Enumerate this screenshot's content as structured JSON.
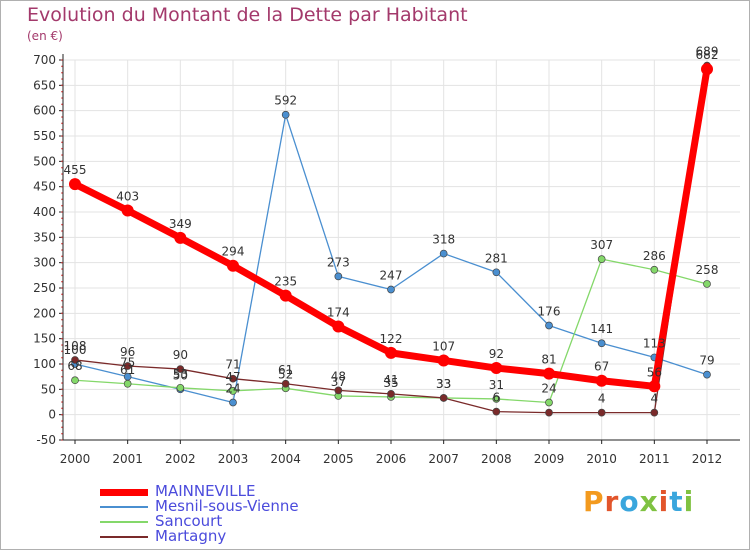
{
  "chart_data": {
    "type": "line",
    "title": "Evolution du Montant de la Dette par Habitant",
    "unit_label": "(en €)",
    "x": [
      "2000",
      "2001",
      "2002",
      "2003",
      "2004",
      "2005",
      "2006",
      "2007",
      "2008",
      "2009",
      "2010",
      "2011",
      "2012"
    ],
    "ylim": [
      -50,
      700
    ],
    "yticks": [
      -50,
      0,
      50,
      100,
      150,
      200,
      250,
      300,
      350,
      400,
      450,
      500,
      550,
      600,
      650,
      700
    ],
    "grid": true,
    "legend_position": "bottom-left",
    "series": [
      {
        "name": "MAINNEVILLE",
        "color": "#ff0000",
        "width": 7,
        "values": [
          455,
          403,
          349,
          294,
          235,
          174,
          122,
          107,
          92,
          81,
          67,
          56,
          682
        ],
        "labels": [
          "455",
          "403",
          "349",
          "294",
          "235",
          "174",
          "122",
          "107",
          "92",
          "81",
          "67",
          "56",
          "682"
        ]
      },
      {
        "name": "Mesnil-sous-Vienne",
        "color": "#4a8fd0",
        "width": 1.3,
        "values": [
          100,
          75,
          50,
          24,
          592,
          273,
          247,
          318,
          281,
          176,
          141,
          113,
          79
        ],
        "labels": [
          "100",
          "75",
          "50",
          "24",
          "592",
          "273",
          "247",
          "318",
          "281",
          "176",
          "141",
          "113",
          "79"
        ]
      },
      {
        "name": "Sancourt",
        "color": "#84d86a",
        "width": 1.3,
        "values": [
          68,
          61,
          53,
          47,
          52,
          37,
          35,
          33,
          31,
          24,
          307,
          286,
          258
        ],
        "labels": [
          "68",
          "61",
          "53",
          "47",
          "52",
          "37",
          "35",
          "33",
          "31",
          "24",
          "307",
          "286",
          "258"
        ]
      },
      {
        "name": "Martagny",
        "color": "#7a2a2a",
        "width": 1.3,
        "values": [
          108,
          96,
          90,
          71,
          61,
          48,
          41,
          33,
          6,
          4,
          4,
          4,
          689
        ],
        "labels": [
          "108",
          "96",
          "90",
          "71",
          "61",
          "48",
          "41",
          "33",
          "6",
          "",
          "4",
          "4",
          "689"
        ]
      }
    ]
  },
  "brand": {
    "text": "Proxiti",
    "colors": [
      "#f39a1e",
      "#e2552b",
      "#3aa6dd",
      "#7fc241",
      "#e2552b",
      "#3aa6dd",
      "#7fc241"
    ]
  }
}
